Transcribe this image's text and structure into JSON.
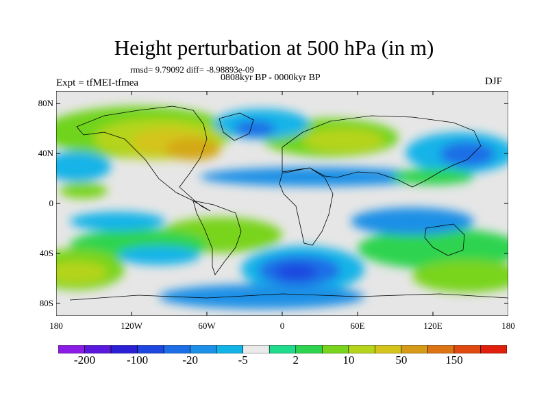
{
  "figure": {
    "title": "Height perturbation at 500 hPa (in m)",
    "stats_text": "rmsd= 9.79092 diff= -8.98893e-09",
    "period_text": "0808kyr BP - 0000kyr BP",
    "experiment_text": "Expt = tfMEI-tfmea",
    "season_text": "DJF"
  },
  "map": {
    "projection": "cylindrical-equidistant",
    "lon_range": [
      -180,
      180
    ],
    "lat_range": [
      -90,
      90
    ],
    "lat_ticks": [
      {
        "value": 80,
        "label": "80N"
      },
      {
        "value": 40,
        "label": "40N"
      },
      {
        "value": 0,
        "label": "0"
      },
      {
        "value": -40,
        "label": "40S"
      },
      {
        "value": -80,
        "label": "80S"
      }
    ],
    "lon_ticks": [
      {
        "value": -180,
        "label": "180"
      },
      {
        "value": -120,
        "label": "120W"
      },
      {
        "value": -60,
        "label": "60W"
      },
      {
        "value": 0,
        "label": "0"
      },
      {
        "value": 60,
        "label": "60E"
      },
      {
        "value": 120,
        "label": "120E"
      },
      {
        "value": 180,
        "label": "180"
      }
    ],
    "background_color": "#e6e6e6",
    "coastline_color": "#000000"
  },
  "colorbar": {
    "colors": [
      "#8a1ce6",
      "#5a18de",
      "#2b1fd6",
      "#1e46e0",
      "#1d6ee6",
      "#1b90e6",
      "#12b4e8",
      "#eaeaea",
      "#1fdc8c",
      "#2ed450",
      "#79d41e",
      "#b5d41a",
      "#d4c41a",
      "#d49a18",
      "#dc7414",
      "#e04a10",
      "#e0200c"
    ],
    "labels": [
      {
        "text": "-200",
        "boundary": 1
      },
      {
        "text": "-100",
        "boundary": 3
      },
      {
        "text": "-20",
        "boundary": 5
      },
      {
        "text": "-5",
        "boundary": 7
      },
      {
        "text": "2",
        "boundary": 9
      },
      {
        "text": "10",
        "boundary": 11
      },
      {
        "text": "50",
        "boundary": 13
      },
      {
        "text": "150",
        "boundary": 15
      }
    ]
  }
}
